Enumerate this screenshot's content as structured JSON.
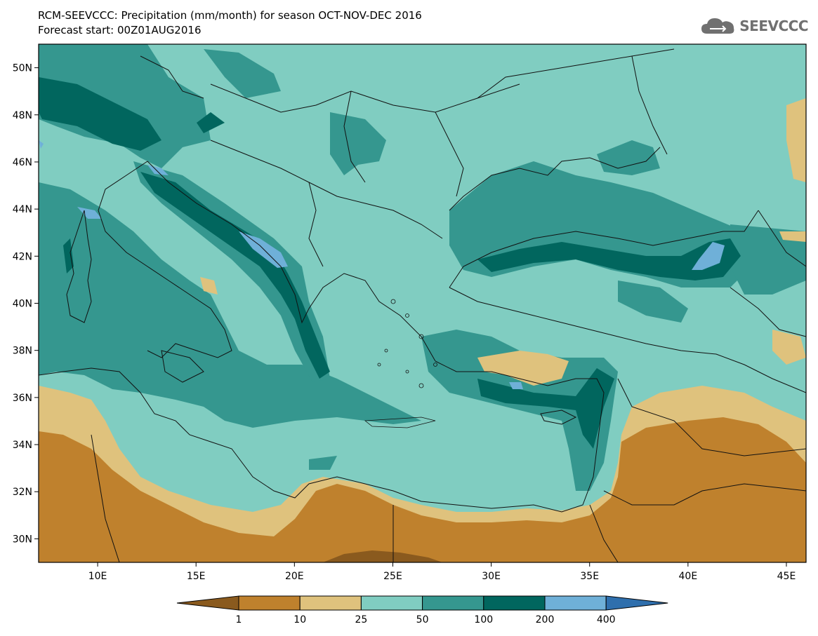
{
  "title": {
    "line1": "RCM-SEEVCCC: Precipitation (mm/month) for season OCT-NOV-DEC 2016",
    "line2": "Forecast start: 00Z01AUG2016"
  },
  "logo": {
    "text": "SEEVCCC",
    "icon": "cloud-icon"
  },
  "map": {
    "lon_range": [
      7,
      46
    ],
    "lat_range": [
      29,
      51
    ],
    "lat_ticks": [
      {
        "value": 50,
        "label": "50N"
      },
      {
        "value": 48,
        "label": "48N"
      },
      {
        "value": 46,
        "label": "46N"
      },
      {
        "value": 44,
        "label": "44N"
      },
      {
        "value": 42,
        "label": "42N"
      },
      {
        "value": 40,
        "label": "40N"
      },
      {
        "value": 38,
        "label": "38N"
      },
      {
        "value": 36,
        "label": "36N"
      },
      {
        "value": 34,
        "label": "34N"
      },
      {
        "value": 32,
        "label": "32N"
      },
      {
        "value": 30,
        "label": "30N"
      }
    ],
    "lon_ticks": [
      {
        "value": 10,
        "label": "10E"
      },
      {
        "value": 15,
        "label": "15E"
      },
      {
        "value": 20,
        "label": "20E"
      },
      {
        "value": 25,
        "label": "25E"
      },
      {
        "value": 30,
        "label": "30E"
      },
      {
        "value": 35,
        "label": "35E"
      },
      {
        "value": 40,
        "label": "40E"
      },
      {
        "value": 45,
        "label": "45E"
      }
    ]
  },
  "colorbar": {
    "colors": [
      "#8a5a1e",
      "#bf812d",
      "#dfc27d",
      "#80cdc1",
      "#35978f",
      "#01665e",
      "#6fb0d8",
      "#2f6fad"
    ],
    "labels": [
      "1",
      "10",
      "25",
      "50",
      "100",
      "200",
      "400"
    ]
  },
  "colors": {
    "very_dry": "#8a5a1e",
    "dry": "#bf812d",
    "semi_dry": "#dfc27d",
    "moderate": "#80cdc1",
    "wet": "#35978f",
    "very_wet": "#01665e",
    "extreme": "#6fb0d8",
    "borders": "#111111",
    "sea_shade": "#358f88"
  }
}
